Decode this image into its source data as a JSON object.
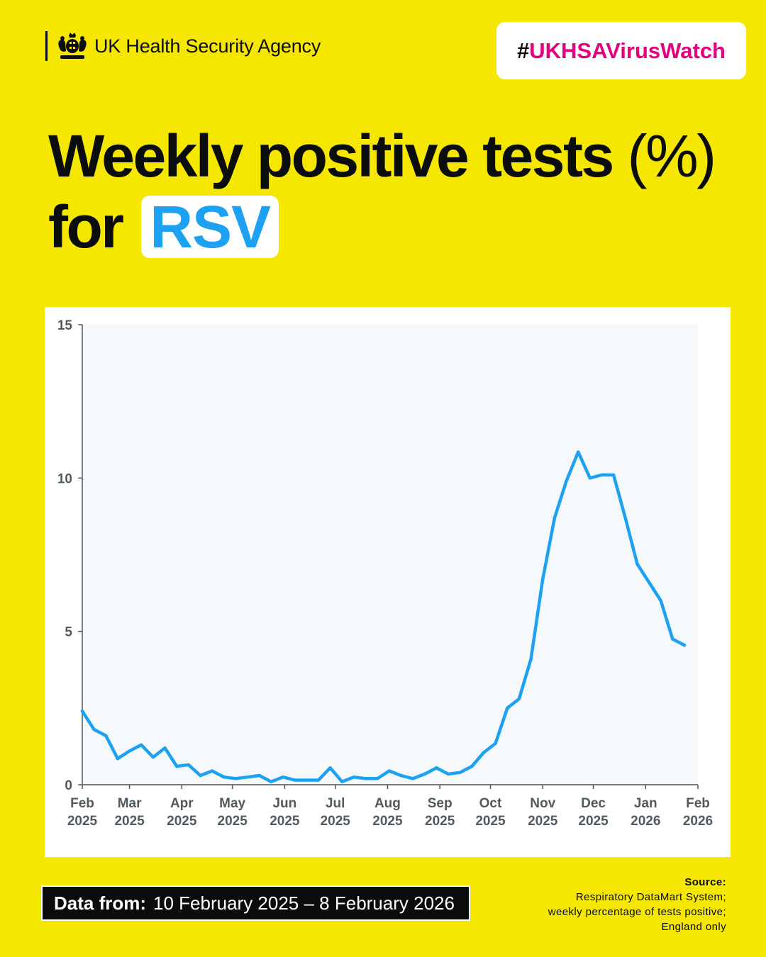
{
  "brand": {
    "name": "UK Health Security Agency",
    "logo_icon": "royal-crest-icon"
  },
  "hashtag": {
    "hash": "#",
    "text": "UKHSAVirusWatch",
    "color": "#e5007d"
  },
  "title": {
    "line1": "Weekly positive tests",
    "paren": "(%)",
    "line2_prefix": "for",
    "highlight": "RSV"
  },
  "colors": {
    "background": "#f6e700",
    "line": "#1da1f2",
    "plot_bg": "#f5f9fb",
    "text": "#0b0c0c"
  },
  "chart_data": {
    "type": "line",
    "title": "Weekly positive tests (%) for RSV",
    "ylim": [
      0,
      15
    ],
    "yticks": [
      0,
      5,
      10,
      15
    ],
    "xlim": [
      "2025-02-01",
      "2026-02-01"
    ],
    "xticks": [
      {
        "date": "2025-02-01",
        "month": "Feb",
        "year": "2025"
      },
      {
        "date": "2025-03-01",
        "month": "Mar",
        "year": "2025"
      },
      {
        "date": "2025-04-01",
        "month": "Apr",
        "year": "2025"
      },
      {
        "date": "2025-05-01",
        "month": "May",
        "year": "2025"
      },
      {
        "date": "2025-06-01",
        "month": "Jun",
        "year": "2025"
      },
      {
        "date": "2025-07-01",
        "month": "Jul",
        "year": "2025"
      },
      {
        "date": "2025-08-01",
        "month": "Aug",
        "year": "2025"
      },
      {
        "date": "2025-09-01",
        "month": "Sep",
        "year": "2025"
      },
      {
        "date": "2025-10-01",
        "month": "Oct",
        "year": "2025"
      },
      {
        "date": "2025-11-01",
        "month": "Nov",
        "year": "2025"
      },
      {
        "date": "2025-12-01",
        "month": "Dec",
        "year": "2025"
      },
      {
        "date": "2026-01-01",
        "month": "Jan",
        "year": "2026"
      },
      {
        "date": "2026-02-01",
        "month": "Feb",
        "year": "2026"
      }
    ],
    "grid": false,
    "series": [
      {
        "color": "#1da1f2",
        "x": [
          "2025-02-01",
          "2025-02-08",
          "2025-02-15",
          "2025-02-22",
          "2025-03-01",
          "2025-03-08",
          "2025-03-15",
          "2025-03-22",
          "2025-03-29",
          "2025-04-05",
          "2025-04-12",
          "2025-04-19",
          "2025-04-26",
          "2025-05-03",
          "2025-05-10",
          "2025-05-17",
          "2025-05-24",
          "2025-05-31",
          "2025-06-07",
          "2025-06-14",
          "2025-06-21",
          "2025-06-28",
          "2025-07-05",
          "2025-07-12",
          "2025-07-19",
          "2025-07-26",
          "2025-08-02",
          "2025-08-09",
          "2025-08-16",
          "2025-08-23",
          "2025-08-30",
          "2025-09-06",
          "2025-09-13",
          "2025-09-20",
          "2025-09-27",
          "2025-10-04",
          "2025-10-11",
          "2025-10-18",
          "2025-10-25",
          "2025-11-01",
          "2025-11-08",
          "2025-11-15",
          "2025-11-22",
          "2025-11-29",
          "2025-12-06",
          "2025-12-13",
          "2025-12-20",
          "2025-12-27",
          "2026-01-03",
          "2026-01-10",
          "2026-01-17",
          "2026-01-24"
        ],
        "y": [
          2.4,
          1.8,
          1.6,
          0.85,
          1.1,
          1.3,
          0.9,
          1.2,
          0.6,
          0.65,
          0.3,
          0.45,
          0.25,
          0.2,
          0.25,
          0.3,
          0.1,
          0.25,
          0.15,
          0.15,
          0.15,
          0.55,
          0.1,
          0.25,
          0.2,
          0.2,
          0.45,
          0.3,
          0.2,
          0.35,
          0.55,
          0.35,
          0.4,
          0.6,
          1.05,
          1.35,
          2.5,
          2.8,
          4.1,
          6.7,
          8.7,
          9.9,
          10.85,
          10.0,
          10.1,
          10.1,
          8.7,
          7.2,
          6.6,
          6.0,
          4.75,
          4.55
        ]
      }
    ]
  },
  "footer": {
    "data_from_label": "Data from:",
    "data_from_value": "10 February 2025 – 8 February 2026",
    "source_label": "Source:",
    "source_lines": [
      "Respiratory DataMart System;",
      "weekly percentage of tests positive;",
      "England only"
    ]
  }
}
